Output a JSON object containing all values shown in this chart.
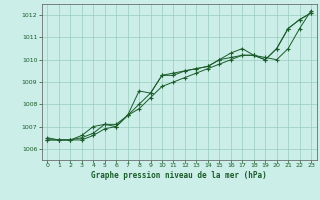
{
  "xlabel": "Graphe pression niveau de la mer (hPa)",
  "xlim": [
    -0.5,
    23.5
  ],
  "ylim": [
    1005.5,
    1012.5
  ],
  "yticks": [
    1006,
    1007,
    1008,
    1009,
    1010,
    1011,
    1012
  ],
  "xticks": [
    0,
    1,
    2,
    3,
    4,
    5,
    6,
    7,
    8,
    9,
    10,
    11,
    12,
    13,
    14,
    15,
    16,
    17,
    18,
    19,
    20,
    21,
    22,
    23
  ],
  "bg_color": "#cceee8",
  "grid_color": "#99ccbb",
  "line_color": "#1a5c2a",
  "line1": [
    1006.5,
    1006.4,
    1006.4,
    1006.5,
    1006.7,
    1007.1,
    1007.0,
    1007.5,
    1008.6,
    1008.5,
    1009.3,
    1009.4,
    1009.5,
    1009.6,
    1009.7,
    1010.0,
    1010.1,
    1010.2,
    1010.2,
    1010.0,
    1010.5,
    1011.4,
    1011.8,
    1012.1
  ],
  "line2": [
    1006.4,
    1006.4,
    1006.4,
    1006.4,
    1006.6,
    1006.9,
    1007.0,
    1007.5,
    1007.8,
    1008.3,
    1008.8,
    1009.0,
    1009.2,
    1009.4,
    1009.6,
    1009.8,
    1010.0,
    1010.2,
    1010.2,
    1010.1,
    1010.0,
    1010.5,
    1011.4,
    1012.2
  ],
  "line3": [
    1006.4,
    1006.4,
    1006.4,
    1006.6,
    1007.0,
    1007.1,
    1007.1,
    1007.5,
    1008.0,
    1008.5,
    1009.3,
    1009.3,
    1009.5,
    1009.6,
    1009.7,
    1010.0,
    1010.3,
    1010.5,
    1010.2,
    1010.0,
    1010.5,
    1011.4,
    1011.8,
    1012.1
  ]
}
